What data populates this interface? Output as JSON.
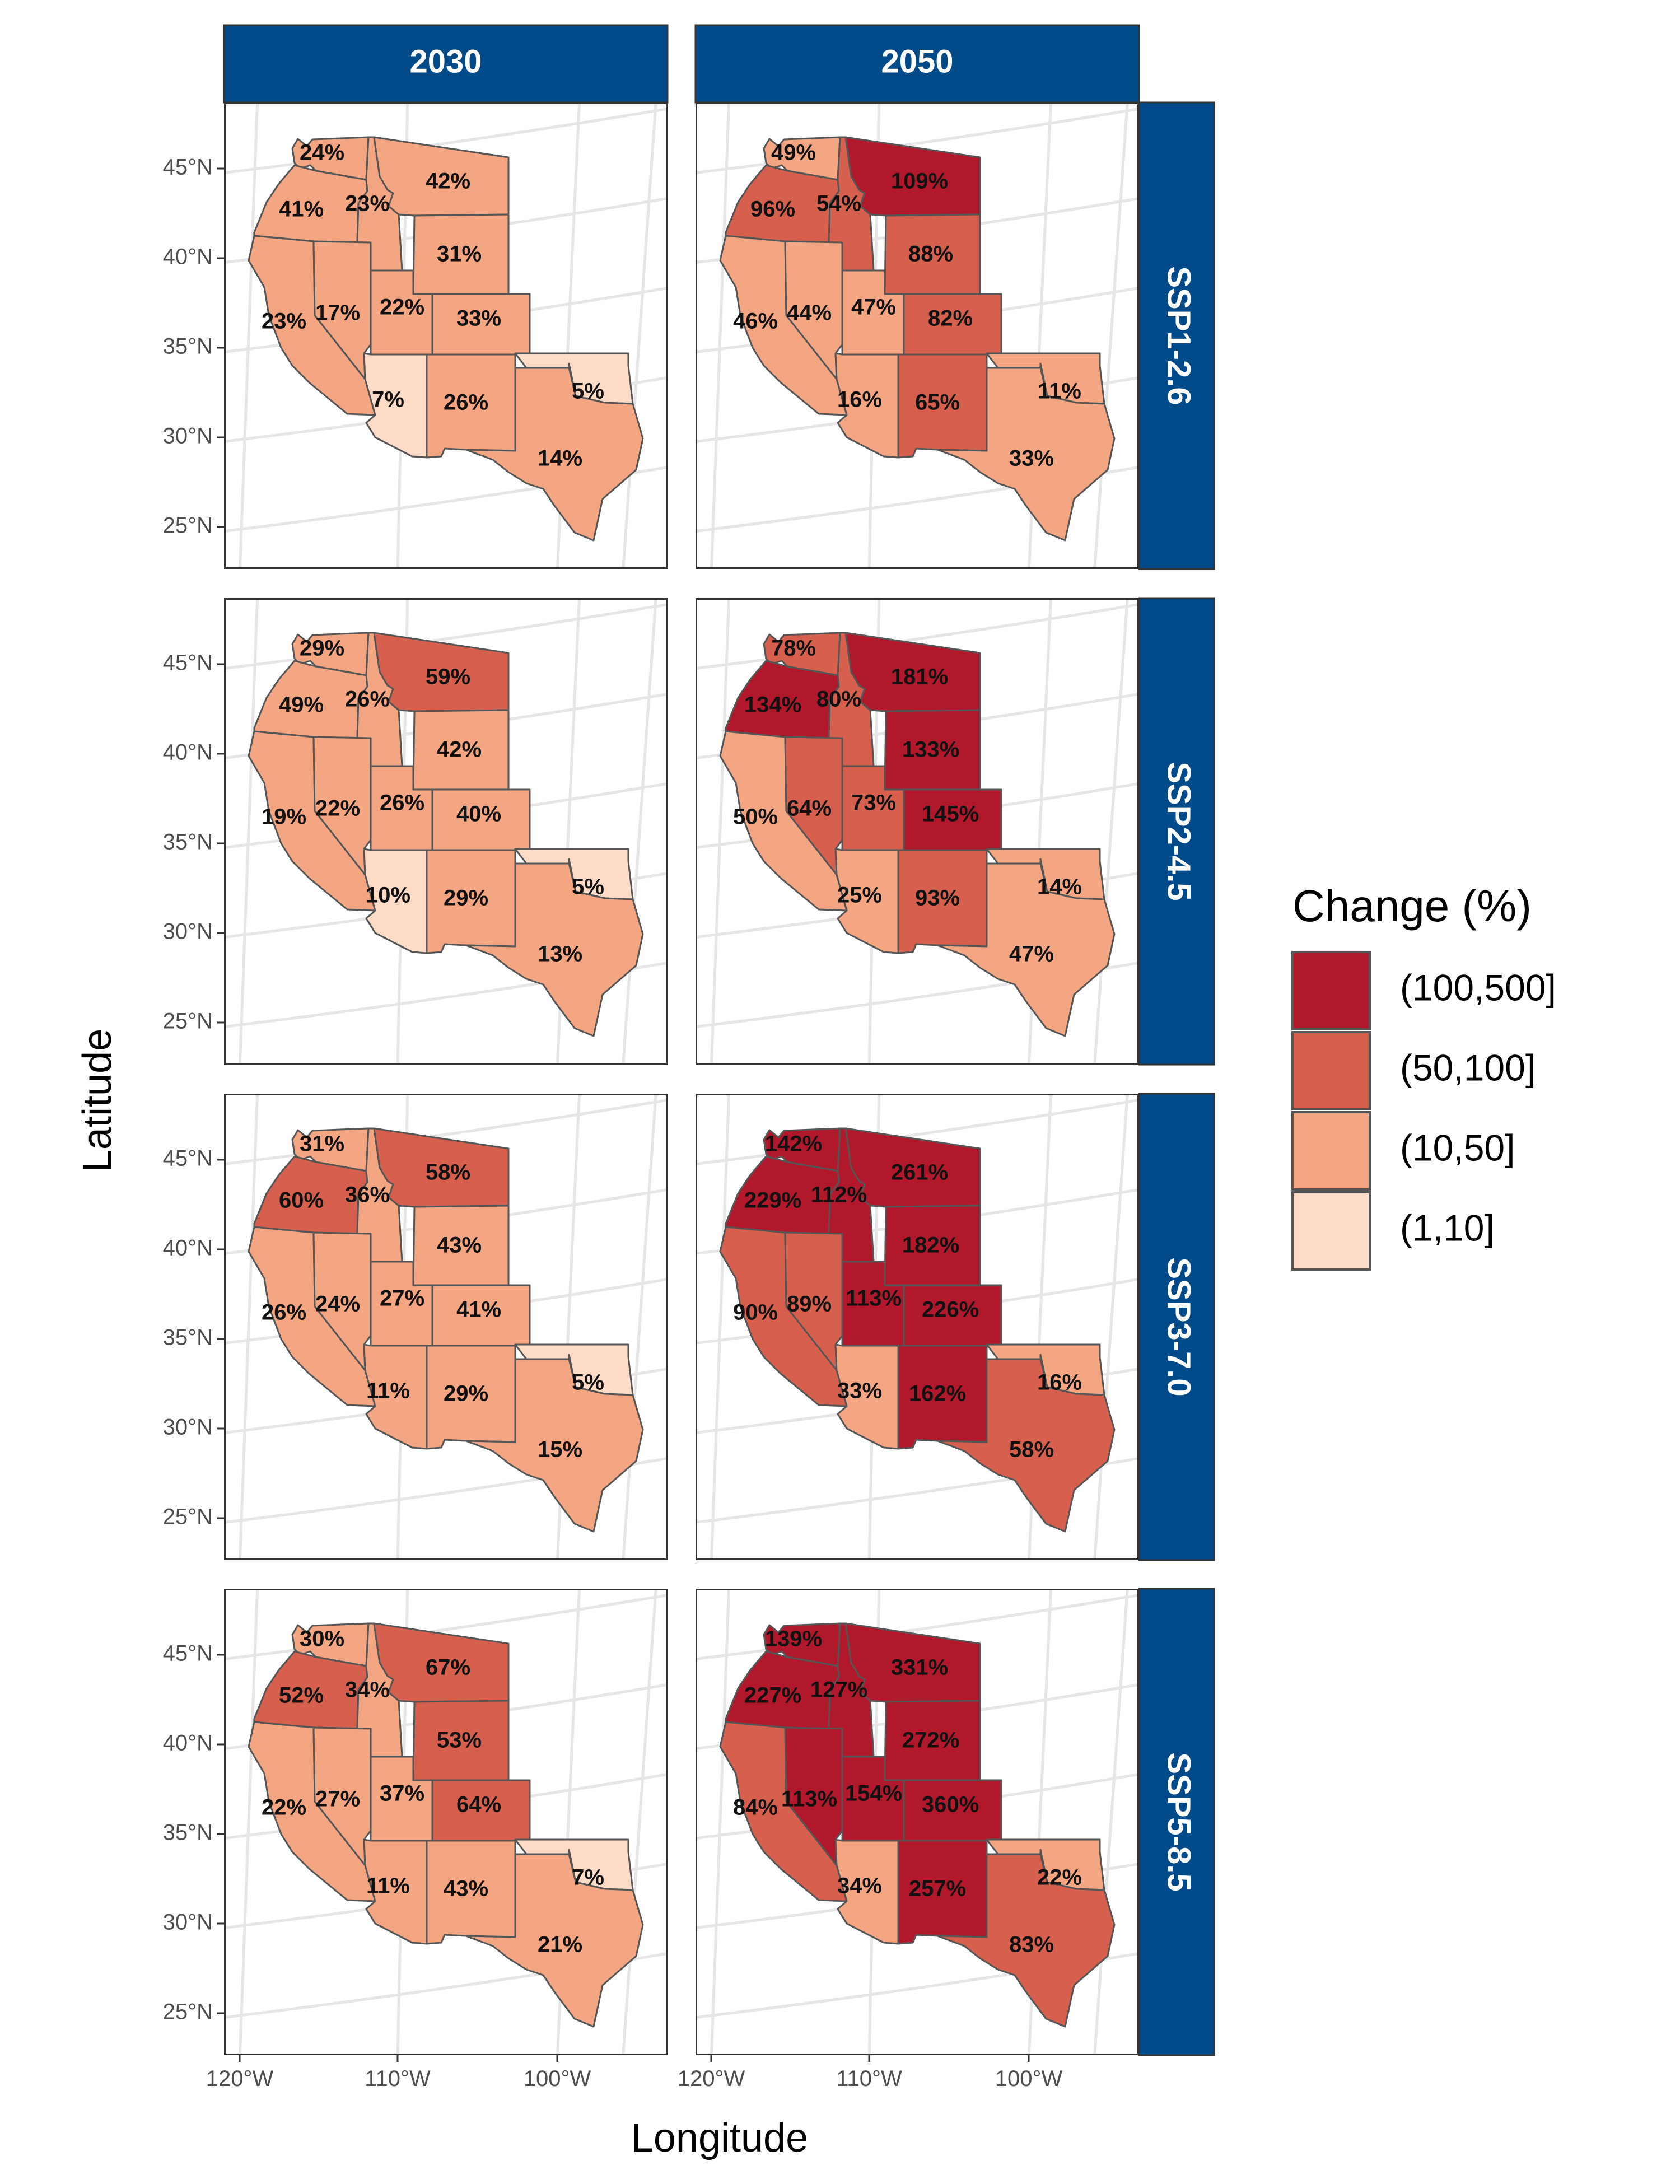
{
  "chart_data": {
    "type": "choropleth-map-grid",
    "column_headers": [
      "2030",
      "2050"
    ],
    "row_headers": [
      "SSP1-2.6",
      "SSP2-4.5",
      "SSP3-7.0",
      "SSP5-8.5"
    ],
    "xlabel": "Longitude",
    "ylabel": "Latitude",
    "x_ticks": [
      "120°W",
      "110°W",
      "100°W"
    ],
    "y_ticks": [
      "45°N",
      "40°N",
      "35°N",
      "30°N",
      "25°N"
    ],
    "legend": {
      "title": "Change (%)",
      "bins": [
        {
          "label": "(100,500]",
          "color": "#b2182b"
        },
        {
          "label": "(50,100]",
          "color": "#d6604d"
        },
        {
          "label": "(10,50]",
          "color": "#f4a582"
        },
        {
          "label": "(1,10]",
          "color": "#fddbc7"
        }
      ]
    },
    "states": [
      "WA",
      "OR",
      "ID",
      "MT",
      "WY",
      "CA",
      "NV",
      "UT",
      "CO",
      "AZ",
      "NM",
      "OK",
      "TX"
    ],
    "values": {
      "SSP1-2.6": {
        "2030": {
          "WA": 24,
          "OR": 41,
          "ID": 23,
          "MT": 42,
          "WY": 31,
          "CA": 23,
          "NV": 17,
          "UT": 22,
          "CO": 33,
          "AZ": 7,
          "NM": 26,
          "OK": 5,
          "TX": 14
        },
        "2050": {
          "WA": 49,
          "OR": 96,
          "ID": 54,
          "MT": 109,
          "WY": 88,
          "CA": 46,
          "NV": 44,
          "UT": 47,
          "CO": 82,
          "AZ": 16,
          "NM": 65,
          "OK": 11,
          "TX": 33
        }
      },
      "SSP2-4.5": {
        "2030": {
          "WA": 29,
          "OR": 49,
          "ID": 26,
          "MT": 59,
          "WY": 42,
          "CA": 19,
          "NV": 22,
          "UT": 26,
          "CO": 40,
          "AZ": 10,
          "NM": 29,
          "OK": 5,
          "TX": 13
        },
        "2050": {
          "WA": 78,
          "OR": 134,
          "ID": 80,
          "MT": 181,
          "WY": 133,
          "CA": 50,
          "NV": 64,
          "UT": 73,
          "CO": 145,
          "AZ": 25,
          "NM": 93,
          "OK": 14,
          "TX": 47
        }
      },
      "SSP3-7.0": {
        "2030": {
          "WA": 31,
          "OR": 60,
          "ID": 36,
          "MT": 58,
          "WY": 43,
          "CA": 26,
          "NV": 24,
          "UT": 27,
          "CO": 41,
          "AZ": 11,
          "NM": 29,
          "OK": 5,
          "TX": 15
        },
        "2050": {
          "WA": 142,
          "OR": 229,
          "ID": 112,
          "MT": 261,
          "WY": 182,
          "CA": 90,
          "NV": 89,
          "UT": 113,
          "CO": 226,
          "AZ": 33,
          "NM": 162,
          "OK": 16,
          "TX": 58
        }
      },
      "SSP5-8.5": {
        "2030": {
          "WA": 30,
          "OR": 52,
          "ID": 34,
          "MT": 67,
          "WY": 53,
          "CA": 22,
          "NV": 27,
          "UT": 37,
          "CO": 64,
          "AZ": 11,
          "NM": 43,
          "OK": 7,
          "TX": 21
        },
        "2050": {
          "WA": 139,
          "OR": 227,
          "ID": 127,
          "MT": 331,
          "WY": 272,
          "CA": 84,
          "NV": 113,
          "UT": 154,
          "CO": 360,
          "AZ": 34,
          "NM": 257,
          "OK": 22,
          "TX": 83
        }
      }
    }
  }
}
